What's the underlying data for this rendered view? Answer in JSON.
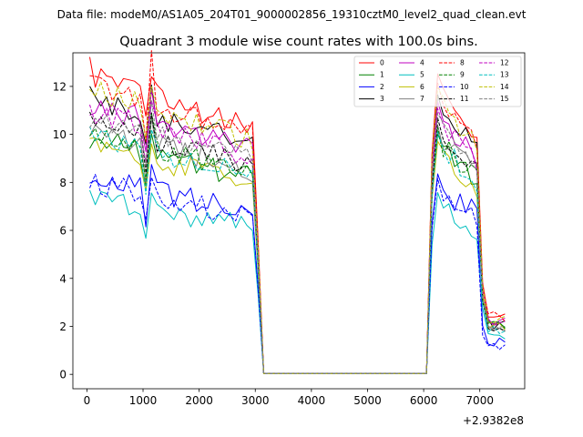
{
  "chart_data": {
    "type": "line",
    "suptitle": "Data file: modeM0/AS1A05_204T01_9000002856_19310cztM0_level2_quad_clean.evt",
    "title": "Quadrant 3 module wise count rates with 100.0s bins.",
    "xlabel": "",
    "ylabel": "",
    "offset_label": "+2.9382e8",
    "xlim": [
      -250,
      7800
    ],
    "ylim": [
      -0.6,
      13.4
    ],
    "xticks": [
      "0",
      "1000",
      "2000",
      "3000",
      "4000",
      "5000",
      "6000",
      "7000"
    ],
    "xtick_values": [
      0,
      1000,
      2000,
      3000,
      4000,
      5000,
      6000,
      7000
    ],
    "yticks": [
      "0",
      "2",
      "4",
      "6",
      "8",
      "10",
      "12"
    ],
    "ytick_values": [
      0,
      2,
      4,
      6,
      8,
      10,
      12
    ],
    "legend": {
      "placement": "top-right",
      "columns": 4
    },
    "x": [
      50,
      150,
      250,
      350,
      450,
      550,
      650,
      750,
      850,
      950,
      1050,
      1150,
      1250,
      1350,
      1450,
      1550,
      1650,
      1750,
      1850,
      1950,
      2050,
      2150,
      2250,
      2350,
      2450,
      2550,
      2650,
      2750,
      2850,
      2950,
      3050,
      3150,
      3250,
      3350,
      3450,
      3550,
      3650,
      3750,
      3850,
      3950,
      4050,
      4150,
      4250,
      4350,
      4450,
      4550,
      4650,
      4750,
      4850,
      4950,
      5050,
      5150,
      5250,
      5350,
      5450,
      5550,
      5650,
      5750,
      5850,
      5950,
      6050,
      6150,
      6250,
      6350,
      6450,
      6550,
      6650,
      6750,
      6850,
      6950,
      7050,
      7150,
      7250,
      7350,
      7450
    ],
    "series": [
      {
        "name": "0",
        "color": "#ff0000",
        "dash": "solid",
        "base": 12.5,
        "tail": 2.3
      },
      {
        "name": "1",
        "color": "#008000",
        "dash": "solid",
        "base": 9.9,
        "tail": 2.0
      },
      {
        "name": "2",
        "color": "#0000ff",
        "dash": "solid",
        "base": 8.2,
        "tail": 1.4
      },
      {
        "name": "3",
        "color": "#000000",
        "dash": "solid",
        "base": 11.6,
        "tail": 2.1
      },
      {
        "name": "4",
        "color": "#c000c0",
        "dash": "solid",
        "base": 11.3,
        "tail": 2.2
      },
      {
        "name": "5",
        "color": "#00bfbf",
        "dash": "solid",
        "base": 7.4,
        "tail": 1.7
      },
      {
        "name": "6",
        "color": "#bfbf00",
        "dash": "solid",
        "base": 9.6,
        "tail": 2.0
      },
      {
        "name": "7",
        "color": "#808080",
        "dash": "solid",
        "base": 10.3,
        "tail": 2.0
      },
      {
        "name": "8",
        "color": "#ff0000",
        "dash": "dashed",
        "base": 12.1,
        "tail": 2.4
      },
      {
        "name": "9",
        "color": "#008000",
        "dash": "dashed",
        "base": 10.2,
        "tail": 2.0
      },
      {
        "name": "10",
        "color": "#0000ff",
        "dash": "dashed",
        "base": 8.0,
        "tail": 1.1
      },
      {
        "name": "11",
        "color": "#000000",
        "dash": "dashed",
        "base": 10.6,
        "tail": 2.0
      },
      {
        "name": "12",
        "color": "#c000c0",
        "dash": "dashed",
        "base": 11.0,
        "tail": 2.1
      },
      {
        "name": "13",
        "color": "#00bfbf",
        "dash": "dashed",
        "base": 10.0,
        "tail": 1.9
      },
      {
        "name": "14",
        "color": "#bfbf00",
        "dash": "dashed",
        "base": 11.9,
        "tail": 2.2
      },
      {
        "name": "15",
        "color": "#808080",
        "dash": "dashed",
        "base": 10.8,
        "tail": 2.0
      }
    ]
  }
}
